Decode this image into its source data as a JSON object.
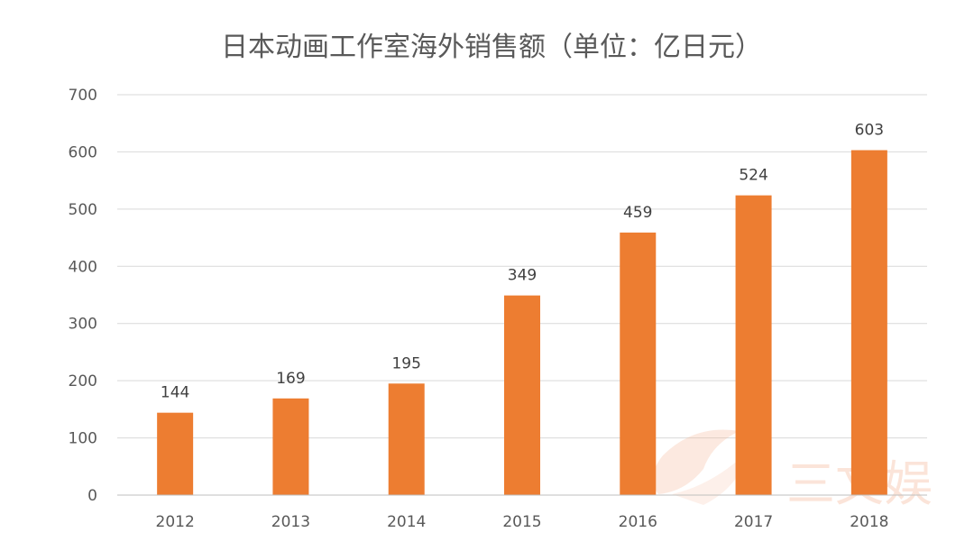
{
  "chart_data": {
    "type": "bar",
    "title": "日本动画工作室海外销售额（单位：亿日元）",
    "xlabel": "",
    "ylabel": "",
    "categories": [
      "2012",
      "2013",
      "2014",
      "2015",
      "2016",
      "2017",
      "2018"
    ],
    "values": [
      144,
      169,
      195,
      349,
      459,
      524,
      603
    ],
    "ylim": [
      0,
      700
    ],
    "yticks": [
      0,
      100,
      200,
      300,
      400,
      500,
      600,
      700
    ],
    "grid": true,
    "legend": "none",
    "data_labels": true,
    "bar_color": "#ED7D31"
  },
  "watermark": {
    "text": "三文娱",
    "color": "#F6B493"
  }
}
